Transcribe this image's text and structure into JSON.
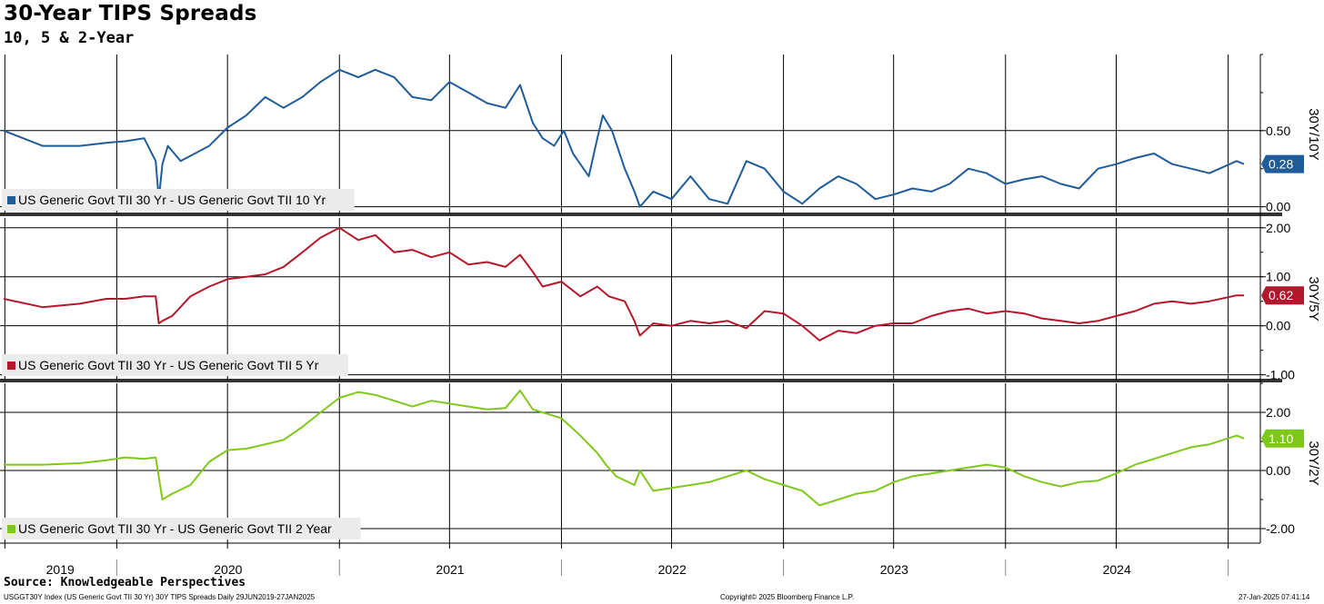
{
  "header": {
    "title": "30-Year TIPS Spreads",
    "subtitle": "10, 5 & 2-Year"
  },
  "footer": {
    "source": "Source: Knowledgeable Perspectives",
    "index_info": "USGGT30Y Index (US Generic Govt TII 30 Yr) 30Y TIPS Spreads  Daily 29JUN2019-27JAN2025",
    "copyright": "Copyright© 2025 Bloomberg Finance L.P.",
    "timestamp": "27-Jan-2025 07:41:14"
  },
  "x_axis": {
    "years": [
      "2019",
      "2020",
      "2021",
      "2022",
      "2023",
      "2024"
    ]
  },
  "chart_data": [
    {
      "type": "line",
      "axis_title": "30Y/10Y",
      "series": [
        {
          "name": "US Generic Govt TII 30 Yr - US Generic Govt TII 10 Yr",
          "color": "#1f5c99"
        }
      ],
      "ylim": [
        -0.05,
        1.0
      ],
      "yticks": [
        0.0,
        0.5
      ],
      "ytick_labels": [
        "0.00",
        "0.50"
      ],
      "last_value": "0.28",
      "x": [
        "2019-06-29",
        "2019-09-01",
        "2019-11-01",
        "2019-12-15",
        "2020-01-15",
        "2020-02-15",
        "2020-03-05",
        "2020-03-10",
        "2020-03-16",
        "2020-03-25",
        "2020-04-15",
        "2020-06-01",
        "2020-07-01",
        "2020-08-01",
        "2020-09-01",
        "2020-10-01",
        "2020-11-01",
        "2020-12-01",
        "2021-01-01",
        "2021-02-01",
        "2021-03-01",
        "2021-04-01",
        "2021-05-01",
        "2021-06-01",
        "2021-07-01",
        "2021-08-01",
        "2021-09-01",
        "2021-10-01",
        "2021-10-25",
        "2021-11-15",
        "2021-12-01",
        "2021-12-20",
        "2022-01-05",
        "2022-01-20",
        "2022-02-15",
        "2022-03-01",
        "2022-03-10",
        "2022-03-25",
        "2022-04-15",
        "2022-05-01",
        "2022-05-10",
        "2022-06-01",
        "2022-07-01",
        "2022-08-01",
        "2022-09-01",
        "2022-10-01",
        "2022-11-01",
        "2022-12-01",
        "2023-01-01",
        "2023-02-01",
        "2023-03-01",
        "2023-04-01",
        "2023-05-01",
        "2023-06-01",
        "2023-07-01",
        "2023-08-01",
        "2023-09-01",
        "2023-10-01",
        "2023-11-01",
        "2023-12-01",
        "2024-01-01",
        "2024-02-01",
        "2024-03-01",
        "2024-04-01",
        "2024-05-01",
        "2024-06-01",
        "2024-07-01",
        "2024-08-01",
        "2024-09-01",
        "2024-10-01",
        "2024-11-01",
        "2024-12-01",
        "2025-01-15",
        "2025-01-27"
      ],
      "y": [
        0.5,
        0.4,
        0.4,
        0.42,
        0.43,
        0.45,
        0.3,
        0.05,
        0.28,
        0.4,
        0.3,
        0.4,
        0.52,
        0.6,
        0.72,
        0.65,
        0.72,
        0.82,
        0.9,
        0.85,
        0.9,
        0.85,
        0.72,
        0.7,
        0.82,
        0.75,
        0.68,
        0.65,
        0.8,
        0.55,
        0.45,
        0.4,
        0.5,
        0.35,
        0.2,
        0.45,
        0.6,
        0.5,
        0.25,
        0.1,
        0.0,
        0.1,
        0.05,
        0.2,
        0.05,
        0.02,
        0.3,
        0.25,
        0.1,
        0.02,
        0.12,
        0.2,
        0.15,
        0.05,
        0.08,
        0.12,
        0.1,
        0.15,
        0.25,
        0.22,
        0.15,
        0.18,
        0.2,
        0.15,
        0.12,
        0.25,
        0.28,
        0.32,
        0.35,
        0.28,
        0.25,
        0.22,
        0.3,
        0.28
      ]
    },
    {
      "type": "line",
      "axis_title": "30Y/5Y",
      "series": [
        {
          "name": "US Generic Govt TII 30 Yr - US Generic Govt TII 5 Yr",
          "color": "#b5172a"
        }
      ],
      "ylim": [
        -1.1,
        2.2
      ],
      "yticks": [
        -1.0,
        0.0,
        1.0,
        2.0
      ],
      "ytick_labels": [
        "-1.00",
        "0.00",
        "1.00",
        "2.00"
      ],
      "last_value": "0.62",
      "x": [
        "2019-06-29",
        "2019-09-01",
        "2019-11-01",
        "2019-12-15",
        "2020-01-15",
        "2020-02-15",
        "2020-03-05",
        "2020-03-10",
        "2020-03-16",
        "2020-04-01",
        "2020-05-01",
        "2020-06-01",
        "2020-07-01",
        "2020-08-01",
        "2020-09-01",
        "2020-10-01",
        "2020-11-01",
        "2020-12-01",
        "2021-01-01",
        "2021-02-01",
        "2021-03-01",
        "2021-04-01",
        "2021-05-01",
        "2021-06-01",
        "2021-07-01",
        "2021-08-01",
        "2021-09-01",
        "2021-10-01",
        "2021-10-25",
        "2021-11-15",
        "2021-12-01",
        "2022-01-01",
        "2022-02-01",
        "2022-03-01",
        "2022-03-20",
        "2022-04-15",
        "2022-05-01",
        "2022-05-10",
        "2022-06-01",
        "2022-07-01",
        "2022-08-01",
        "2022-09-01",
        "2022-10-01",
        "2022-11-01",
        "2022-12-01",
        "2023-01-01",
        "2023-02-01",
        "2023-03-01",
        "2023-04-01",
        "2023-05-01",
        "2023-06-01",
        "2023-07-01",
        "2023-08-01",
        "2023-09-01",
        "2023-10-01",
        "2023-11-01",
        "2023-12-01",
        "2024-01-01",
        "2024-02-01",
        "2024-03-01",
        "2024-04-01",
        "2024-05-01",
        "2024-06-01",
        "2024-07-01",
        "2024-08-01",
        "2024-09-01",
        "2024-10-01",
        "2024-11-01",
        "2024-12-01",
        "2025-01-15",
        "2025-01-27"
      ],
      "y": [
        0.55,
        0.38,
        0.45,
        0.55,
        0.55,
        0.6,
        0.6,
        0.05,
        0.1,
        0.2,
        0.6,
        0.8,
        0.95,
        1.0,
        1.05,
        1.2,
        1.5,
        1.8,
        2.0,
        1.75,
        1.85,
        1.5,
        1.55,
        1.4,
        1.5,
        1.25,
        1.3,
        1.2,
        1.45,
        1.1,
        0.8,
        0.9,
        0.6,
        0.8,
        0.6,
        0.5,
        0.1,
        -0.2,
        0.05,
        0.0,
        0.1,
        0.05,
        0.1,
        -0.05,
        0.3,
        0.25,
        0.0,
        -0.3,
        -0.1,
        -0.15,
        0.0,
        0.05,
        0.05,
        0.2,
        0.3,
        0.35,
        0.25,
        0.3,
        0.25,
        0.15,
        0.1,
        0.05,
        0.1,
        0.2,
        0.3,
        0.45,
        0.5,
        0.45,
        0.5,
        0.62,
        0.62
      ]
    },
    {
      "type": "line",
      "axis_title": "30Y/2Y",
      "series": [
        {
          "name": "US Generic Govt TII 30 Yr - US Generic Govt TII 2 Year",
          "color": "#7ec81a"
        }
      ],
      "ylim": [
        -2.5,
        3.0
      ],
      "yticks": [
        -2.0,
        0.0,
        2.0
      ],
      "ytick_labels": [
        "-2.00",
        "0.00",
        "2.00"
      ],
      "last_value": "1.10",
      "x": [
        "2019-06-29",
        "2019-09-01",
        "2019-11-01",
        "2019-12-15",
        "2020-01-15",
        "2020-02-15",
        "2020-03-05",
        "2020-03-16",
        "2020-04-01",
        "2020-05-01",
        "2020-06-01",
        "2020-07-01",
        "2020-08-01",
        "2020-09-01",
        "2020-10-01",
        "2020-11-01",
        "2020-12-01",
        "2021-01-01",
        "2021-02-01",
        "2021-03-01",
        "2021-04-01",
        "2021-05-01",
        "2021-06-01",
        "2021-07-01",
        "2021-08-01",
        "2021-09-01",
        "2021-10-01",
        "2021-10-25",
        "2021-11-15",
        "2021-12-01",
        "2022-01-01",
        "2022-02-01",
        "2022-03-01",
        "2022-03-15",
        "2022-04-01",
        "2022-05-01",
        "2022-05-10",
        "2022-06-01",
        "2022-07-01",
        "2022-08-01",
        "2022-09-01",
        "2022-10-01",
        "2022-11-01",
        "2022-12-01",
        "2023-01-01",
        "2023-02-01",
        "2023-03-01",
        "2023-04-01",
        "2023-05-01",
        "2023-06-01",
        "2023-07-01",
        "2023-08-01",
        "2023-09-01",
        "2023-10-01",
        "2023-11-01",
        "2023-12-01",
        "2024-01-01",
        "2024-02-01",
        "2024-03-01",
        "2024-04-01",
        "2024-05-01",
        "2024-06-01",
        "2024-07-01",
        "2024-08-01",
        "2024-09-01",
        "2024-10-01",
        "2024-11-01",
        "2024-12-01",
        "2025-01-15",
        "2025-01-27"
      ],
      "y": [
        0.2,
        0.2,
        0.25,
        0.35,
        0.45,
        0.4,
        0.45,
        -1.0,
        -0.8,
        -0.5,
        0.3,
        0.7,
        0.75,
        0.9,
        1.05,
        1.5,
        2.0,
        2.5,
        2.7,
        2.6,
        2.4,
        2.2,
        2.4,
        2.3,
        2.2,
        2.1,
        2.15,
        2.75,
        2.1,
        2.0,
        1.8,
        1.2,
        0.6,
        0.2,
        -0.2,
        -0.5,
        0.0,
        -0.7,
        -0.6,
        -0.5,
        -0.4,
        -0.2,
        0.0,
        -0.3,
        -0.5,
        -0.7,
        -1.2,
        -1.0,
        -0.8,
        -0.7,
        -0.4,
        -0.2,
        -0.1,
        0.0,
        0.1,
        0.2,
        0.1,
        -0.2,
        -0.4,
        -0.55,
        -0.4,
        -0.35,
        -0.1,
        0.2,
        0.4,
        0.6,
        0.8,
        0.9,
        1.2,
        1.1
      ]
    }
  ]
}
